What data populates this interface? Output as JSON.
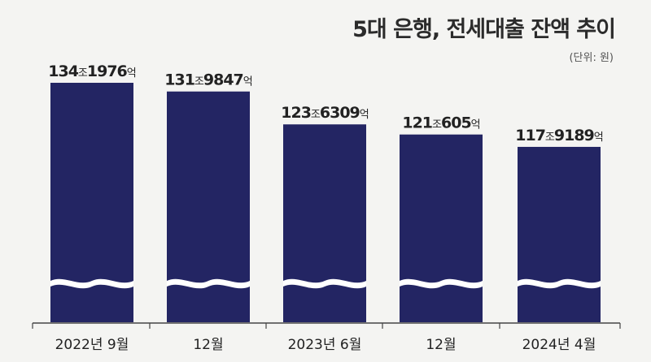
{
  "chart_data": {
    "type": "bar",
    "title": "5대 은행, 전세대출 잔액 추이",
    "unit_note": "(단위: 원)",
    "categories": [
      "2022년 9월",
      "12월",
      "2023년 6월",
      "12월",
      "2024년 4월"
    ],
    "values": [
      134.1976,
      131.9847,
      123.6309,
      121.0605,
      117.9189
    ],
    "value_labels": [
      {
        "main": "134",
        "jo": "조",
        "rest": "1976",
        "eok": "억"
      },
      {
        "main": "131",
        "jo": "조",
        "rest": "9847",
        "eok": "억"
      },
      {
        "main": "123",
        "jo": "조",
        "rest": "6309",
        "eok": "억"
      },
      {
        "main": "121",
        "jo": "조",
        "rest": "605",
        "eok": "억"
      },
      {
        "main": "117",
        "jo": "조",
        "rest": "9189",
        "eok": "억"
      }
    ],
    "axis_break": true,
    "grid": false,
    "colors": {
      "bar": "#232563",
      "text": "#222222",
      "axis": "#444444",
      "background": "#f4f4f2"
    }
  }
}
